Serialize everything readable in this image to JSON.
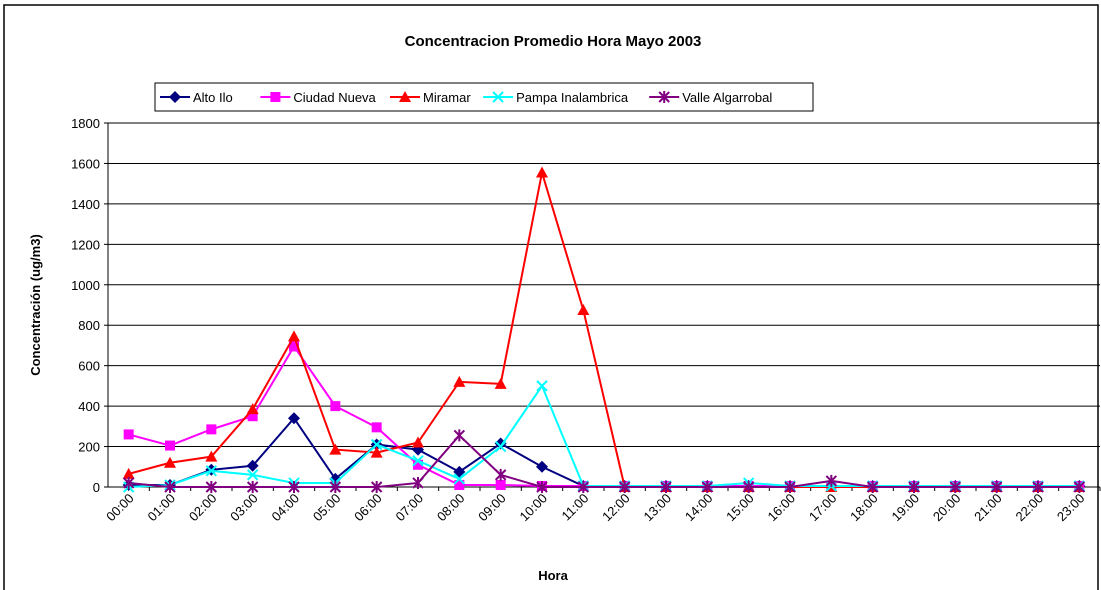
{
  "chart_data": {
    "type": "line",
    "title": "Concentracion Promedio Hora Mayo 2003",
    "x_label": "Hora",
    "y_label": "Concentración (ug/m3)",
    "categories": [
      "00:00",
      "01:00",
      "02:00",
      "03:00",
      "04:00",
      "05:00",
      "06:00",
      "07:00",
      "08:00",
      "09:00",
      "10:00",
      "11:00",
      "12:00",
      "13:00",
      "14:00",
      "15:00",
      "16:00",
      "17:00",
      "18:00",
      "19:00",
      "20:00",
      "21:00",
      "22:00",
      "23:00"
    ],
    "series": [
      {
        "name": "Alto Ilo",
        "color": "#000080",
        "marker": "diamond",
        "values": [
          10,
          10,
          85,
          105,
          340,
          40,
          210,
          185,
          75,
          215,
          100,
          5,
          5,
          5,
          5,
          5,
          5,
          5,
          5,
          5,
          5,
          5,
          5,
          5
        ]
      },
      {
        "name": "Ciudad Nueva",
        "color": "#ff00ff",
        "marker": "square",
        "values": [
          260,
          205,
          285,
          350,
          695,
          400,
          295,
          110,
          10,
          10,
          5,
          5,
          5,
          5,
          5,
          5,
          5,
          5,
          5,
          5,
          5,
          5,
          5,
          5
        ]
      },
      {
        "name": "Miramar",
        "color": "#ff0000",
        "marker": "triangle",
        "values": [
          65,
          120,
          150,
          385,
          745,
          185,
          170,
          220,
          520,
          510,
          1555,
          875,
          0,
          0,
          0,
          0,
          0,
          0,
          0,
          0,
          0,
          0,
          0,
          0
        ]
      },
      {
        "name": "Pampa Inalambrica",
        "color": "#00ffff",
        "marker": "x",
        "values": [
          0,
          10,
          80,
          60,
          20,
          20,
          210,
          130,
          40,
          200,
          500,
          5,
          5,
          5,
          5,
          20,
          5,
          5,
          5,
          5,
          5,
          5,
          5,
          5
        ]
      },
      {
        "name": "Valle Algarrobal",
        "color": "#800080",
        "marker": "star",
        "values": [
          20,
          0,
          0,
          0,
          0,
          0,
          0,
          20,
          255,
          60,
          0,
          0,
          0,
          0,
          0,
          0,
          0,
          30,
          0,
          0,
          0,
          0,
          0,
          0
        ]
      }
    ],
    "ylim": [
      0,
      1800
    ],
    "yticks": [
      0,
      200,
      400,
      600,
      800,
      1000,
      1200,
      1400,
      1600,
      1800
    ],
    "grid": true,
    "legend": "top"
  }
}
